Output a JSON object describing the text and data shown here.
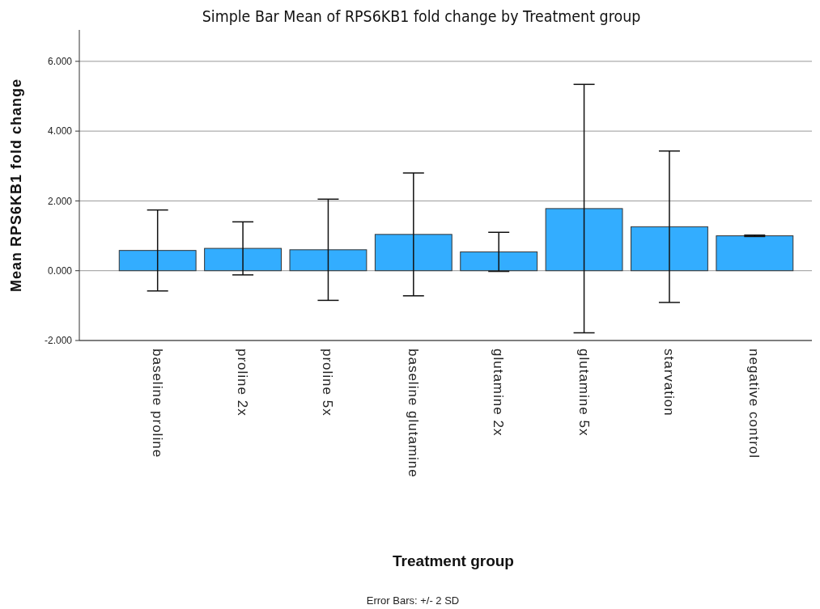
{
  "chart_data": {
    "type": "bar",
    "title": "Simple Bar Mean of RPS6KB1 fold change by Treatment group",
    "xlabel": "Treatment group",
    "ylabel": "Mean RPS6KB1 fold change",
    "annotations": [
      "Error Bars: +/- 2 SD"
    ],
    "categories": [
      "baseline proline",
      "proline 2x",
      "proline 5x",
      "baseline glutamine",
      "glutamine 2x",
      "glutamine 5x",
      "starvation",
      "negative control"
    ],
    "values": [
      0.58,
      0.64,
      0.6,
      1.04,
      0.54,
      1.78,
      1.26,
      1.0
    ],
    "errors": [
      1.16,
      0.76,
      1.45,
      1.76,
      0.56,
      3.56,
      2.17,
      0.02
    ],
    "color": "#33adff",
    "ylim": [
      -2,
      6.9
    ],
    "yticks": [
      {
        "value": -2,
        "label": "-2.000"
      },
      {
        "value": 0,
        "label": "0.000"
      },
      {
        "value": 2,
        "label": "2.000"
      },
      {
        "value": 4,
        "label": "4.000"
      },
      {
        "value": 6,
        "label": "6.000"
      }
    ],
    "grid": "y"
  }
}
